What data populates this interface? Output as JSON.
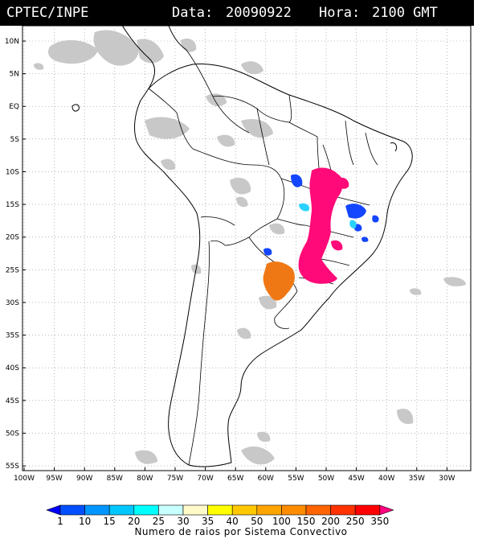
{
  "header": {
    "source": "CPTEC/INPE",
    "date_label": "Data:",
    "date_value": "20090922",
    "time_label": "Hora:",
    "time_value": "2100 GMT"
  },
  "latitude_labels": [
    "10N",
    "5N",
    "EQ",
    "5S",
    "10S",
    "15S",
    "20S",
    "25S",
    "30S",
    "35S",
    "40S",
    "45S",
    "50S",
    "55S"
  ],
  "longitude_labels": [
    "100W",
    "95W",
    "90W",
    "85W",
    "80W",
    "75W",
    "70W",
    "65W",
    "60W",
    "55W",
    "50W",
    "45W",
    "40W",
    "35W",
    "30W"
  ],
  "colorbar": {
    "labels": [
      "1",
      "10",
      "15",
      "20",
      "25",
      "30",
      "35",
      "40",
      "50",
      "100",
      "150",
      "200",
      "250",
      "350"
    ],
    "colors": [
      "#0000ff",
      "#0050ff",
      "#0096ff",
      "#00c8ff",
      "#00ffff",
      "#c8ffff",
      "#fffac8",
      "#ffff00",
      "#ffc800",
      "#ffa500",
      "#ff8c00",
      "#ff6400",
      "#ff3200",
      "#ff0000",
      "#ff0080"
    ],
    "title": "Numero de raios por Sistema Convectivo"
  },
  "colors": {
    "header_bg": "#000000",
    "header_text": "#ffffff",
    "cloud_gray": "#c8c8c8",
    "system_magenta": "#ff0a78",
    "system_orange": "#f07814",
    "system_blue": "#1446ff",
    "system_cyan": "#2ad2ff"
  }
}
